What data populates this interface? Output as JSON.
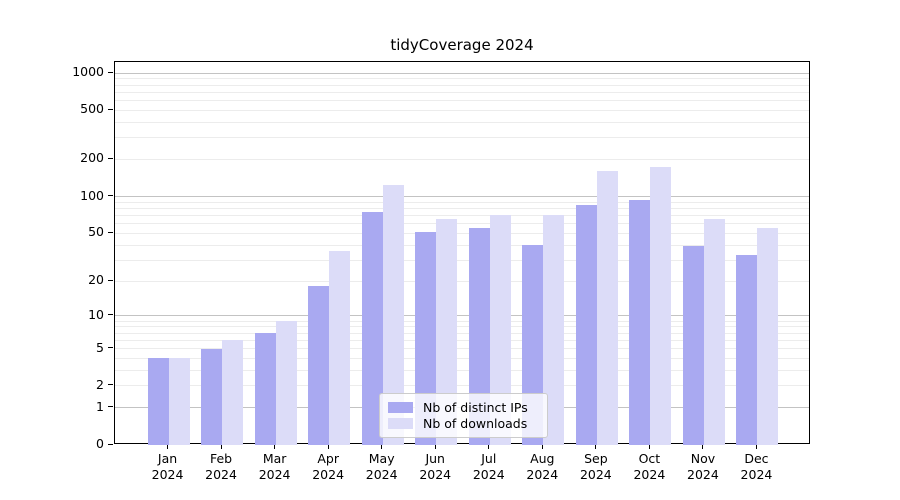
{
  "chart_data": {
    "type": "bar",
    "title": "tidyCoverage 2024",
    "categories": [
      "Jan",
      "Feb",
      "Mar",
      "Apr",
      "May",
      "Jun",
      "Jul",
      "Aug",
      "Sep",
      "Oct",
      "Nov",
      "Dec"
    ],
    "year_label": "2024",
    "series": [
      {
        "name": "Nb of distinct IPs",
        "color": "#a9a9f1",
        "values": [
          4,
          5,
          7,
          18,
          75,
          51,
          55,
          40,
          85,
          93,
          39,
          33
        ]
      },
      {
        "name": "Nb of downloads",
        "color": "#dcdcf8",
        "values": [
          4,
          6,
          9,
          36,
          125,
          65,
          71,
          70,
          160,
          175,
          65,
          55
        ]
      }
    ],
    "y_scale": "log1p",
    "y_ticks": [
      0,
      1,
      2,
      5,
      10,
      20,
      50,
      100,
      200,
      500,
      1000
    ],
    "ylim": [
      0,
      1230
    ],
    "grid": "horizontal",
    "legend_position": "inside-bottom-center",
    "axis_color": "#000000",
    "major_grid_color": "#c3c3c3",
    "minor_grid_color": "#ececec"
  }
}
